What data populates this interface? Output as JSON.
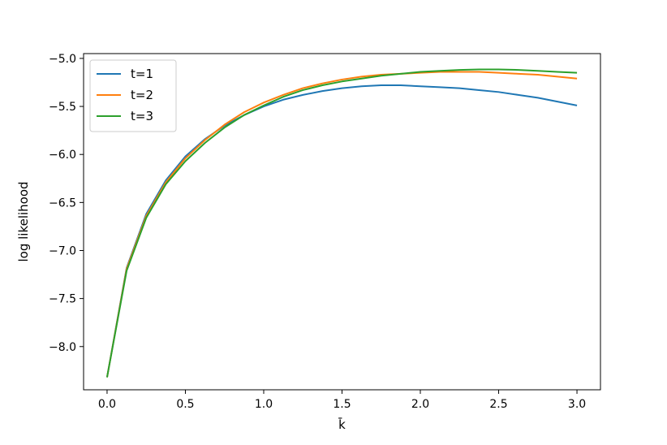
{
  "chart_data": {
    "type": "line",
    "xlabel": "k̄",
    "ylabel": "log likelihood",
    "xlim": [
      -0.15,
      3.15
    ],
    "ylim": [
      -8.45,
      -4.95
    ],
    "xticks": [
      0.0,
      0.5,
      1.0,
      1.5,
      2.0,
      2.5,
      3.0
    ],
    "xtick_labels": [
      "0.0",
      "0.5",
      "1.0",
      "1.5",
      "2.0",
      "2.5",
      "3.0"
    ],
    "yticks": [
      -5.0,
      -5.5,
      -6.0,
      -6.5,
      -7.0,
      -7.5,
      -8.0
    ],
    "ytick_labels": [
      "−5.0",
      "−5.5",
      "−6.0",
      "−6.5",
      "−7.0",
      "−7.5",
      "−8.0"
    ],
    "legend": {
      "position": "top-left"
    },
    "x": [
      0.0,
      0.125,
      0.25,
      0.375,
      0.5,
      0.625,
      0.75,
      0.875,
      1.0,
      1.125,
      1.25,
      1.375,
      1.5,
      1.625,
      1.75,
      1.875,
      2.0,
      2.125,
      2.25,
      2.375,
      2.5,
      2.625,
      2.75,
      2.875,
      3.0
    ],
    "series": [
      {
        "name": "t=1",
        "color": "#1f77b4",
        "values": [
          -8.32,
          -7.18,
          -6.62,
          -6.27,
          -6.02,
          -5.84,
          -5.7,
          -5.59,
          -5.5,
          -5.43,
          -5.38,
          -5.34,
          -5.31,
          -5.29,
          -5.28,
          -5.28,
          -5.29,
          -5.3,
          -5.31,
          -5.33,
          -5.35,
          -5.38,
          -5.41,
          -5.45,
          -5.49
        ]
      },
      {
        "name": "t=2",
        "color": "#ff7f0e",
        "values": [
          -8.32,
          -7.19,
          -6.64,
          -6.29,
          -6.04,
          -5.85,
          -5.69,
          -5.56,
          -5.46,
          -5.38,
          -5.31,
          -5.26,
          -5.22,
          -5.19,
          -5.17,
          -5.16,
          -5.15,
          -5.14,
          -5.14,
          -5.14,
          -5.15,
          -5.16,
          -5.17,
          -5.19,
          -5.21
        ]
      },
      {
        "name": "t=3",
        "color": "#2ca02c",
        "values": [
          -8.32,
          -7.21,
          -6.66,
          -6.31,
          -6.07,
          -5.88,
          -5.72,
          -5.59,
          -5.49,
          -5.4,
          -5.33,
          -5.28,
          -5.24,
          -5.21,
          -5.18,
          -5.16,
          -5.14,
          -5.13,
          -5.12,
          -5.115,
          -5.115,
          -5.12,
          -5.13,
          -5.14,
          -5.15
        ]
      }
    ]
  }
}
